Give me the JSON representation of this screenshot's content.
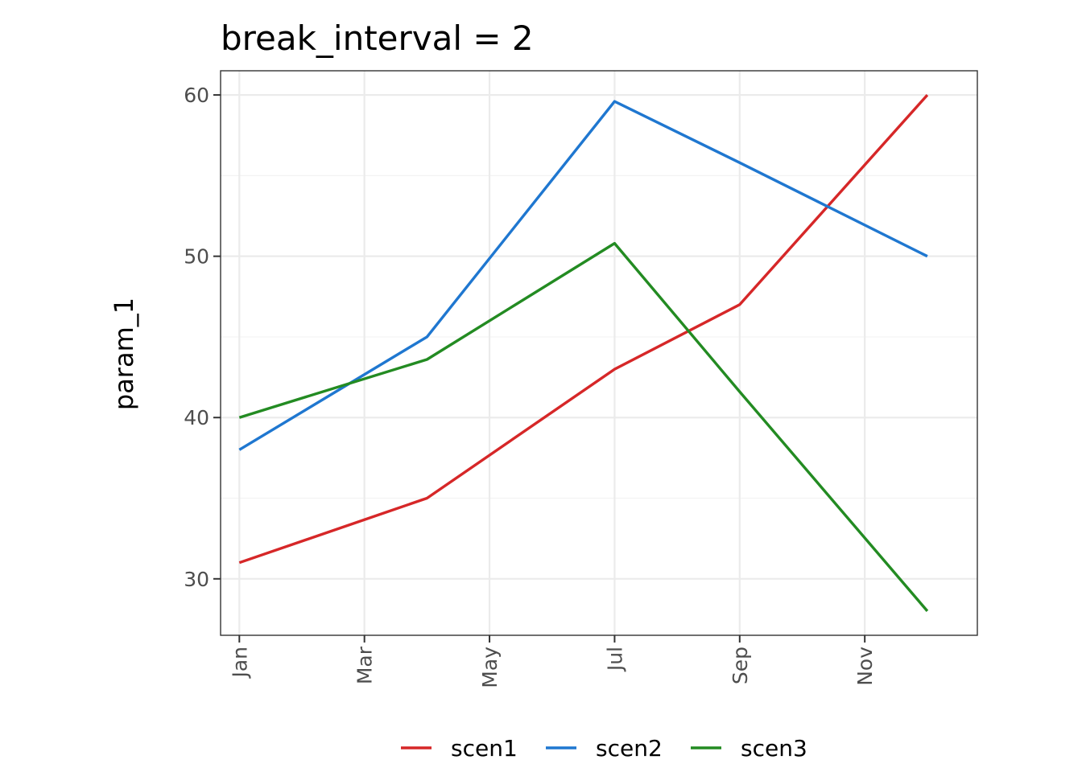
{
  "chart_data": {
    "type": "line",
    "title": "break_interval = 2",
    "ylabel": "param_1",
    "xlabel": "",
    "x": [
      "Jan",
      "Apr",
      "Jul",
      "Sep",
      "Dec"
    ],
    "x_months": [
      1,
      4,
      7,
      9,
      12
    ],
    "x_ticks": [
      "Jan",
      "Mar",
      "May",
      "Jul",
      "Sep",
      "Nov"
    ],
    "x_tick_months": [
      1,
      3,
      5,
      7,
      9,
      11
    ],
    "xlim": [
      0.7,
      12.8
    ],
    "y_ticks": [
      30,
      40,
      50,
      60
    ],
    "ylim": [
      26.5,
      61.5
    ],
    "grid": true,
    "legend_position": "bottom",
    "series": [
      {
        "name": "scen1",
        "color": "#d62728",
        "values": [
          31,
          35,
          43,
          47,
          60
        ]
      },
      {
        "name": "scen2",
        "color": "#1f77d0",
        "values": [
          38,
          45,
          59.6,
          55.8,
          50
        ]
      },
      {
        "name": "scen3",
        "color": "#238b22",
        "values": [
          40,
          43.6,
          50.8,
          41.6,
          28
        ]
      }
    ]
  }
}
